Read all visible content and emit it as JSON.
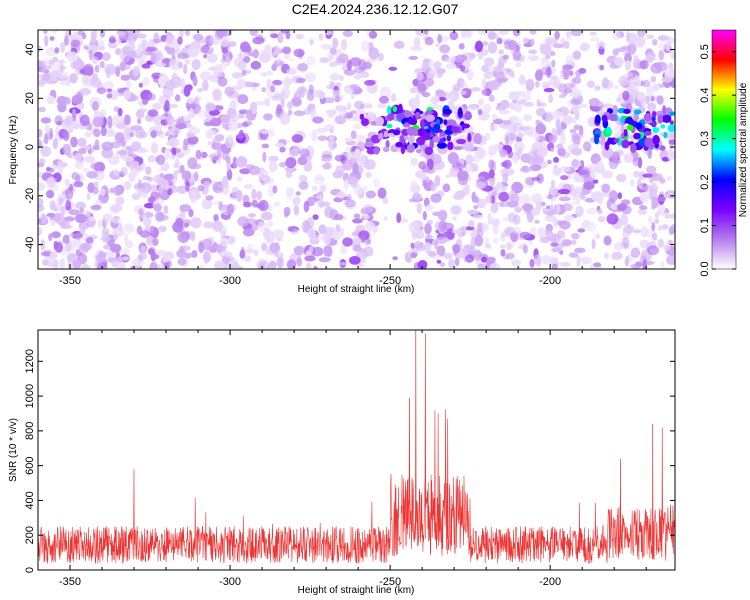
{
  "title": "C2E4.2024.236.12.12.G07",
  "chart_data": [
    {
      "type": "heatmap",
      "xlabel": "Height of straight line (km)",
      "ylabel": "Frequency (Hz)",
      "xlim": [
        -360,
        -161
      ],
      "ylim": [
        -50,
        48
      ],
      "xticks": [
        -350,
        -300,
        -250,
        -200
      ],
      "yticks": [
        -40,
        -20,
        0,
        20,
        40
      ],
      "colorbar": {
        "label": "Normalized spectral amplitude",
        "range": [
          0,
          0.55
        ],
        "ticks": [
          0,
          0.1,
          0.2,
          0.3,
          0.4,
          0.5
        ],
        "tick_labels": [
          "0.0",
          "0.1",
          "0.2",
          "0.3",
          "0.4",
          "0.5"
        ],
        "colors": [
          "#ffffff",
          "#b57bee",
          "#7a00ff",
          "#0000ff",
          "#00ffff",
          "#00ff00",
          "#ffff00",
          "#ff0000",
          "#ff00ff"
        ]
      },
      "background_level": 0.05,
      "hotspots": [
        {
          "x": -242,
          "y": 8,
          "level": 0.35
        },
        {
          "x": -236,
          "y": 7,
          "level": 0.22
        },
        {
          "x": -248,
          "y": 6,
          "level": 0.16
        },
        {
          "x": -175,
          "y": 8,
          "level": 0.35
        },
        {
          "x": -167,
          "y": 7,
          "level": 0.28
        }
      ]
    },
    {
      "type": "line",
      "xlabel": "Height of straight line (km)",
      "ylabel": "SNR (10 * v/v)",
      "xlim": [
        -360,
        -161
      ],
      "ylim": [
        0,
        1380
      ],
      "xticks": [
        -350,
        -300,
        -250,
        -200
      ],
      "yticks": [
        0,
        200,
        400,
        600,
        800,
        1000,
        1200
      ],
      "color": "#ee3333",
      "baseline_snr": 180,
      "peaks": [
        {
          "x": -242,
          "y": 1380
        },
        {
          "x": -239,
          "y": 1360
        },
        {
          "x": -244,
          "y": 990
        },
        {
          "x": -236,
          "y": 920
        },
        {
          "x": -232,
          "y": 870
        },
        {
          "x": -168,
          "y": 840
        },
        {
          "x": -165,
          "y": 820
        },
        {
          "x": -178,
          "y": 640
        },
        {
          "x": -330,
          "y": 580
        }
      ]
    }
  ]
}
